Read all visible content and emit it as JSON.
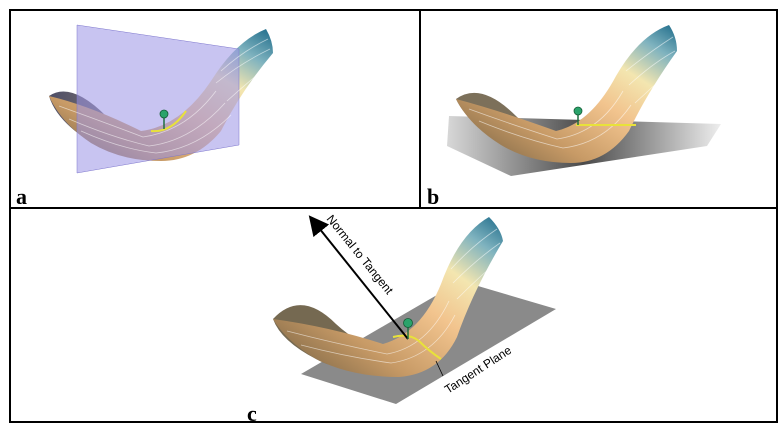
{
  "panels": {
    "a": {
      "label": "a"
    },
    "b": {
      "label": "b"
    },
    "c": {
      "label": "c",
      "normal_label": "Normal to Tangent",
      "plane_label": "Tangent Plane"
    }
  }
}
